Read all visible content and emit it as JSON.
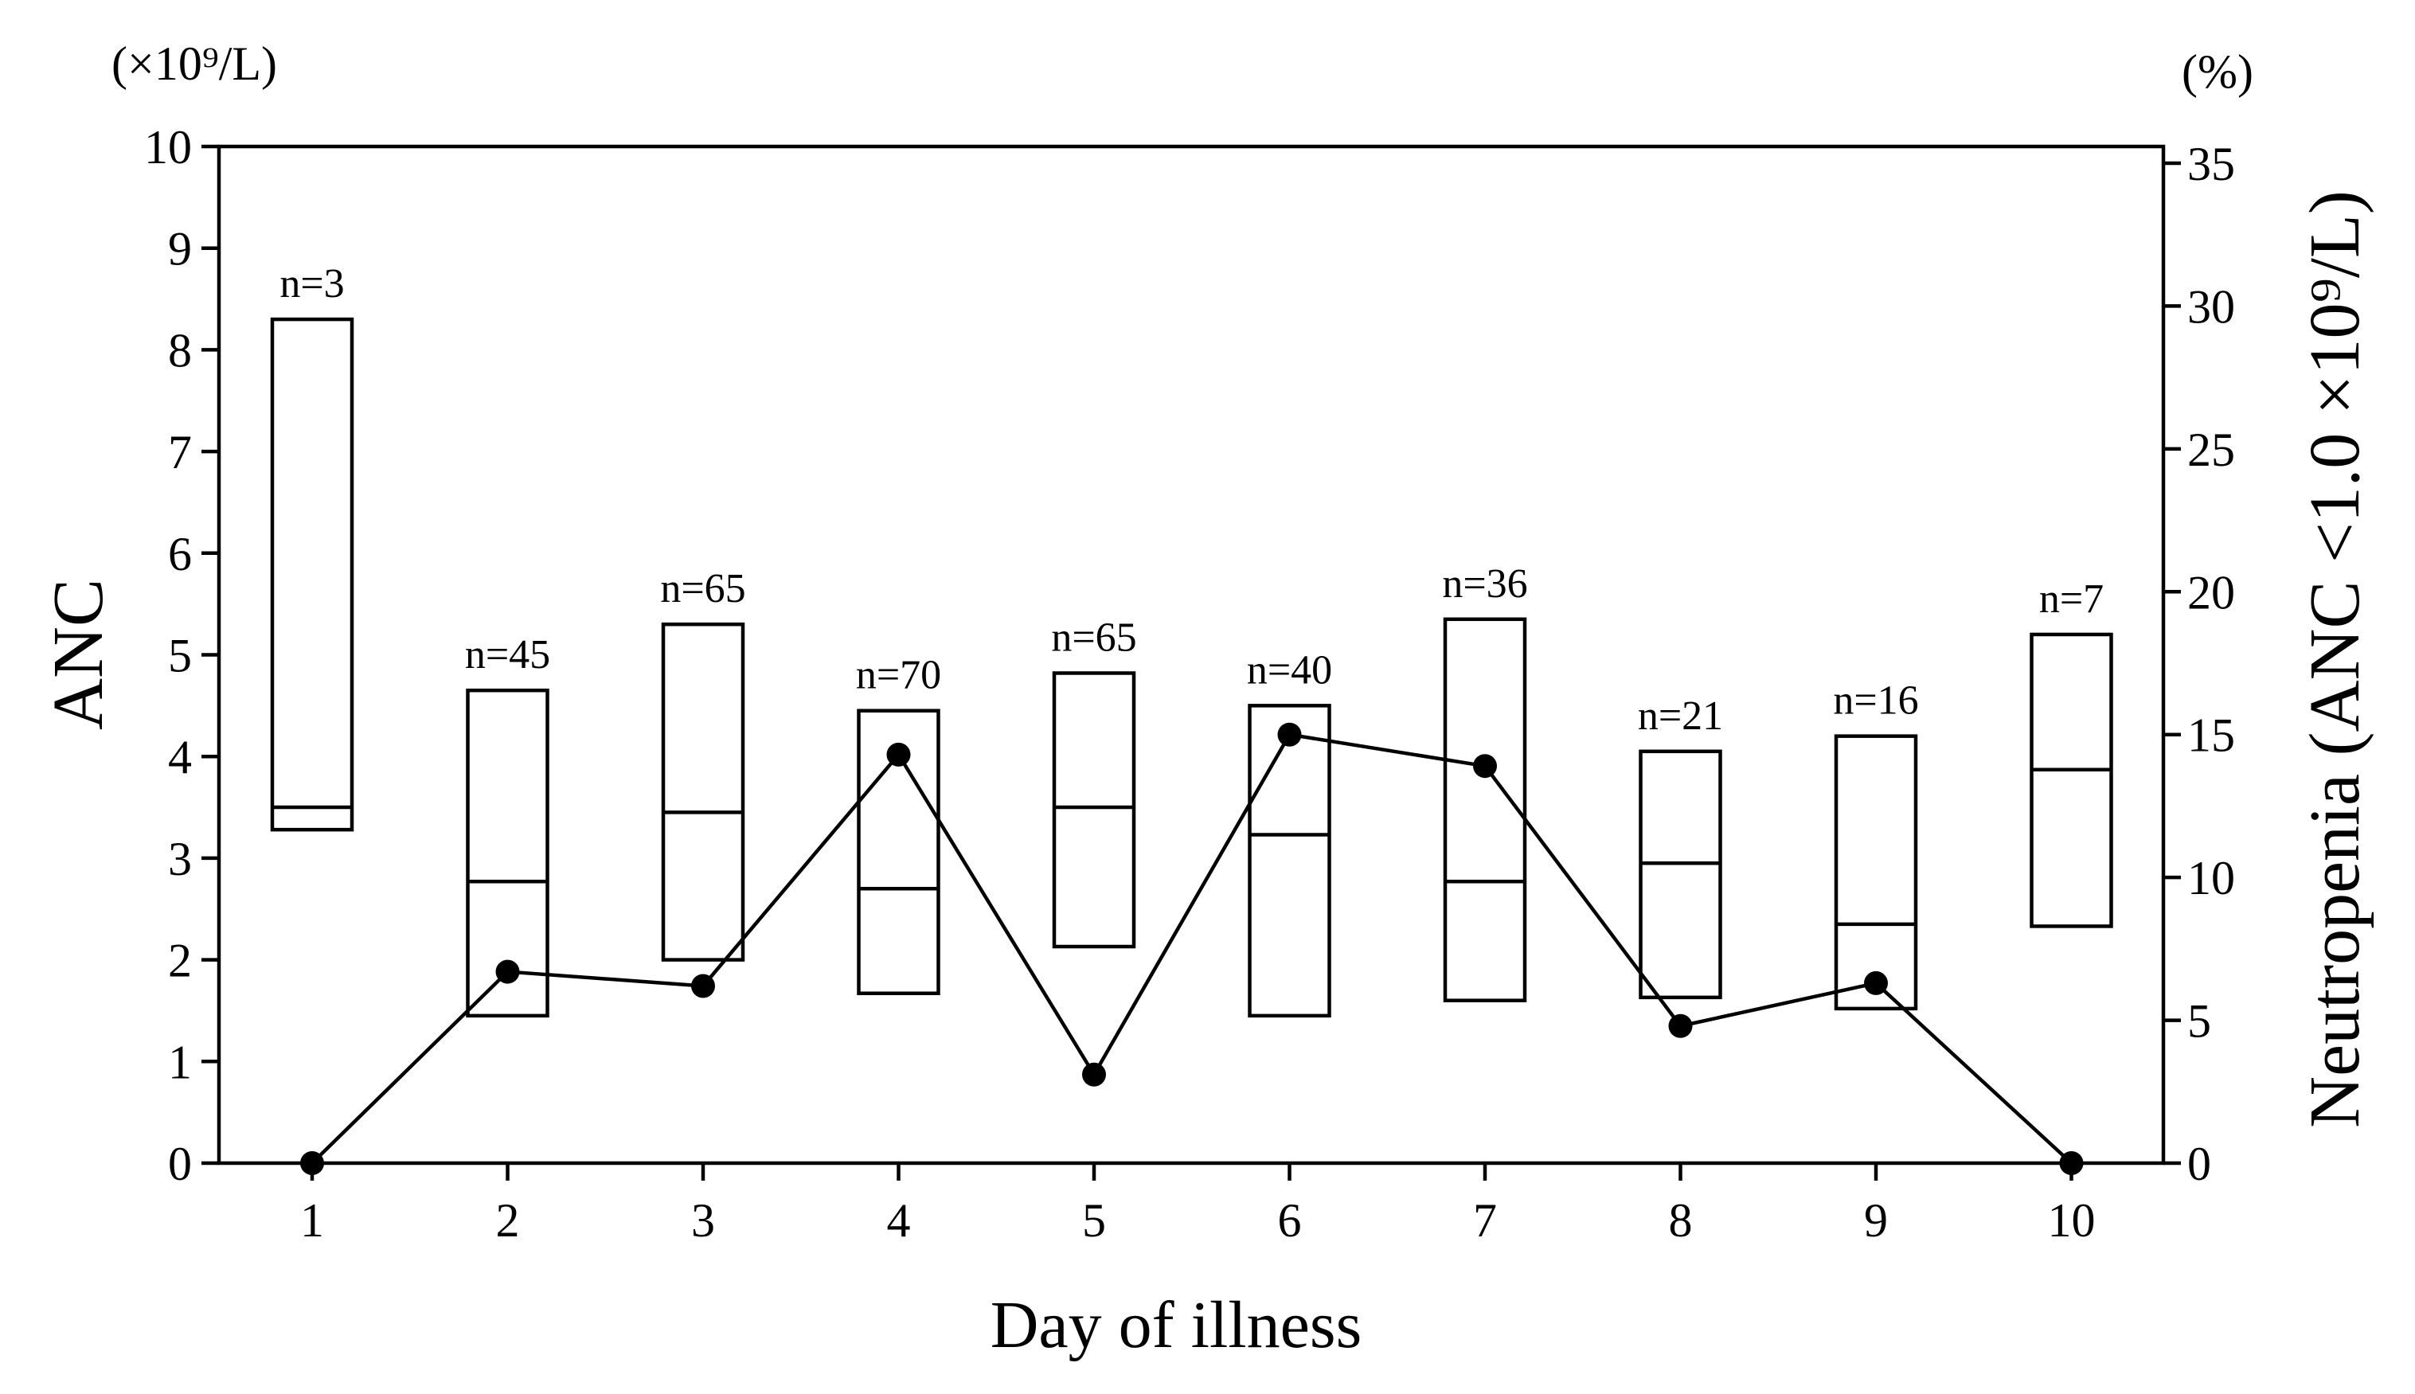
{
  "chart_data": {
    "type": "box_with_line",
    "xlabel": "Day of illness",
    "ylabel_left": "ANC",
    "ylabel_right": "Neutropenia (ANC <1.0 ×10⁹/L)",
    "unit_left": "(×10⁹/L)",
    "unit_right": "(%)",
    "categories": [
      "1",
      "2",
      "3",
      "4",
      "5",
      "6",
      "7",
      "8",
      "9",
      "10"
    ],
    "ylim_left": [
      0,
      10
    ],
    "yticks_left": [
      "0",
      "1",
      "2",
      "3",
      "4",
      "5",
      "6",
      "7",
      "8",
      "9",
      "10"
    ],
    "ylim_right": [
      0,
      35
    ],
    "yticks_right": [
      "0",
      "5",
      "10",
      "15",
      "20",
      "25",
      "30",
      "35"
    ],
    "boxes": [
      {
        "day": "1",
        "n_label": "n=3",
        "low": 3.28,
        "median": 3.5,
        "high": 8.3
      },
      {
        "day": "2",
        "n_label": "n=45",
        "low": 1.45,
        "median": 2.77,
        "high": 4.65
      },
      {
        "day": "3",
        "n_label": "n=65",
        "low": 2.0,
        "median": 3.45,
        "high": 5.3
      },
      {
        "day": "4",
        "n_label": "n=70",
        "low": 1.67,
        "median": 2.7,
        "high": 4.45
      },
      {
        "day": "5",
        "n_label": "n=65",
        "low": 2.13,
        "median": 3.5,
        "high": 4.82
      },
      {
        "day": "6",
        "n_label": "n=40",
        "low": 1.45,
        "median": 3.23,
        "high": 4.5
      },
      {
        "day": "7",
        "n_label": "n=36",
        "low": 1.6,
        "median": 2.77,
        "high": 5.35
      },
      {
        "day": "8",
        "n_label": "n=21",
        "low": 1.63,
        "median": 2.95,
        "high": 4.05
      },
      {
        "day": "9",
        "n_label": "n=16",
        "low": 1.52,
        "median": 2.35,
        "high": 4.2
      },
      {
        "day": "10",
        "n_label": "n=7",
        "low": 2.33,
        "median": 3.87,
        "high": 5.2
      }
    ],
    "series": [
      {
        "name": "Neutropenia (%)",
        "axis": "right",
        "values": [
          0,
          6.7,
          6.2,
          14.3,
          3.1,
          15.0,
          13.9,
          4.8,
          6.3,
          0
        ]
      }
    ]
  }
}
